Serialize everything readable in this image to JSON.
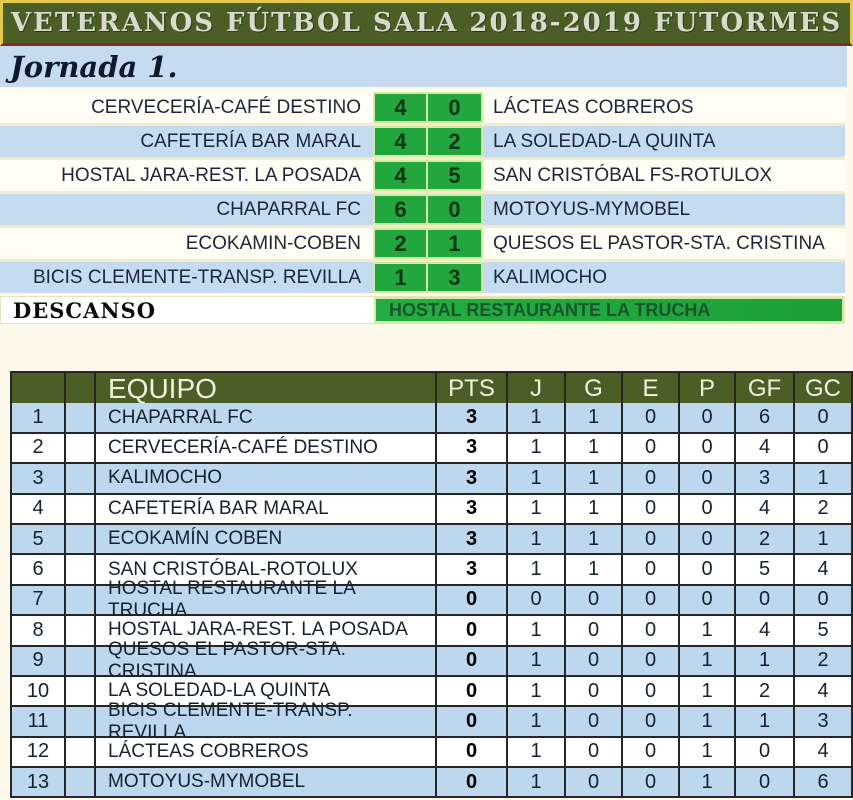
{
  "header": {
    "title": "VETERANOS FÚTBOL SALA 2018-2019 FUTORMES"
  },
  "jornada": {
    "label": "Jornada 1."
  },
  "matches": [
    {
      "home": "CERVECERÍA-CAFÉ DESTINO",
      "home_score": "4",
      "away_score": "0",
      "away": "LÁCTEAS COBREROS"
    },
    {
      "home": "CAFETERÍA BAR MARAL",
      "home_score": "4",
      "away_score": "2",
      "away": "LA SOLEDAD-LA QUINTA"
    },
    {
      "home": "HOSTAL JARA-REST. LA POSADA",
      "home_score": "4",
      "away_score": "5",
      "away": "SAN CRISTÓBAL FS-ROTULOX"
    },
    {
      "home": "CHAPARRAL FC",
      "home_score": "6",
      "away_score": "0",
      "away": "MOTOYUS-MYMOBEL"
    },
    {
      "home": "ECOKAMIN-COBEN",
      "home_score": "2",
      "away_score": "1",
      "away": "QUESOS EL PASTOR-STA. CRISTINA"
    },
    {
      "home": "BICIS CLEMENTE-TRANSP. REVILLA",
      "home_score": "1",
      "away_score": "3",
      "away": "KALIMOCHO"
    }
  ],
  "descanso": {
    "label": "DESCANSO",
    "team": "HOSTAL RESTAURANTE LA TRUCHA"
  },
  "standings": {
    "columns": [
      "EQUIPO",
      "PTS",
      "J",
      "G",
      "E",
      "P",
      "GF",
      "GC"
    ],
    "rows": [
      {
        "pos": "1",
        "team": "CHAPARRAL FC",
        "pts": "3",
        "j": "1",
        "g": "1",
        "e": "0",
        "p": "0",
        "gf": "6",
        "gc": "0"
      },
      {
        "pos": "2",
        "team": "CERVECERÍA-CAFÉ DESTINO",
        "pts": "3",
        "j": "1",
        "g": "1",
        "e": "0",
        "p": "0",
        "gf": "4",
        "gc": "0"
      },
      {
        "pos": "3",
        "team": "KALIMOCHO",
        "pts": "3",
        "j": "1",
        "g": "1",
        "e": "0",
        "p": "0",
        "gf": "3",
        "gc": "1"
      },
      {
        "pos": "4",
        "team": "CAFETERÍA BAR MARAL",
        "pts": "3",
        "j": "1",
        "g": "1",
        "e": "0",
        "p": "0",
        "gf": "4",
        "gc": "2"
      },
      {
        "pos": "5",
        "team": "ECOKAMÍN COBEN",
        "pts": "3",
        "j": "1",
        "g": "1",
        "e": "0",
        "p": "0",
        "gf": "2",
        "gc": "1"
      },
      {
        "pos": "6",
        "team": "SAN CRISTÓBAL-ROTOLUX",
        "pts": "3",
        "j": "1",
        "g": "1",
        "e": "0",
        "p": "0",
        "gf": "5",
        "gc": "4"
      },
      {
        "pos": "7",
        "team": "HOSTAL RESTAURANTE LA TRUCHA",
        "pts": "0",
        "j": "0",
        "g": "0",
        "e": "0",
        "p": "0",
        "gf": "0",
        "gc": "0"
      },
      {
        "pos": "8",
        "team": "HOSTAL JARA-REST. LA POSADA",
        "pts": "0",
        "j": "1",
        "g": "0",
        "e": "0",
        "p": "1",
        "gf": "4",
        "gc": "5"
      },
      {
        "pos": "9",
        "team": "QUESOS EL PASTOR-STA. CRISTINA",
        "pts": "0",
        "j": "1",
        "g": "0",
        "e": "0",
        "p": "1",
        "gf": "1",
        "gc": "2"
      },
      {
        "pos": "10",
        "team": "LA SOLEDAD-LA QUINTA",
        "pts": "0",
        "j": "1",
        "g": "0",
        "e": "0",
        "p": "1",
        "gf": "2",
        "gc": "4"
      },
      {
        "pos": "11",
        "team": "BICIS CLEMENTE-TRANSP. REVILLA",
        "pts": "0",
        "j": "1",
        "g": "0",
        "e": "0",
        "p": "1",
        "gf": "1",
        "gc": "3"
      },
      {
        "pos": "12",
        "team": "LÁCTEAS COBREROS",
        "pts": "0",
        "j": "1",
        "g": "0",
        "e": "0",
        "p": "1",
        "gf": "0",
        "gc": "4"
      },
      {
        "pos": "13",
        "team": "MOTOYUS-MYMOBEL",
        "pts": "0",
        "j": "1",
        "g": "0",
        "e": "0",
        "p": "1",
        "gf": "0",
        "gc": "6"
      }
    ]
  },
  "colors": {
    "olive_header": "#4a5e26",
    "gold_border": "#e3c94f",
    "maroon_line": "#7b3022",
    "score_green": "#21a73e",
    "light_blue_row": "#bdd7ee",
    "jornada_blue": "#c6dbf0",
    "ivory_row": "#fffef4",
    "cream_divider": "#f1ebc9"
  }
}
